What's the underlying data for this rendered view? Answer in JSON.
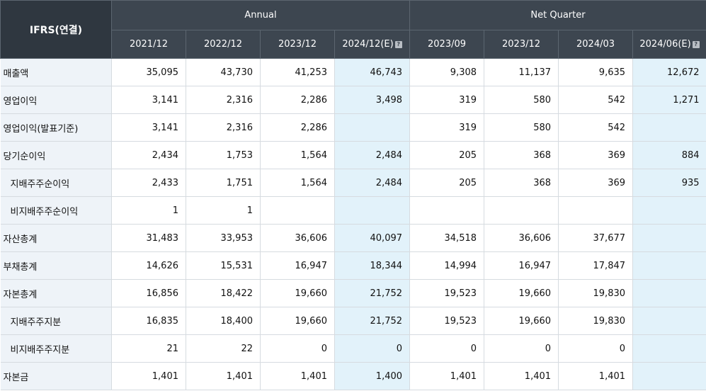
{
  "table": {
    "corner": "IFRS(연결)",
    "group_annual": "Annual",
    "group_quarter": "Net Quarter",
    "columns": [
      "2021/12",
      "2022/12",
      "2023/12",
      "2024/12(E)",
      "2023/09",
      "2023/12",
      "2024/03",
      "2024/06(E)"
    ],
    "estimate_columns": [
      3,
      7
    ],
    "rows": [
      {
        "label": "매출액",
        "sub": false,
        "cells": [
          "35,095",
          "43,730",
          "41,253",
          "46,743",
          "9,308",
          "11,137",
          "9,635",
          "12,672"
        ]
      },
      {
        "label": "영업이익",
        "sub": false,
        "cells": [
          "3,141",
          "2,316",
          "2,286",
          "3,498",
          "319",
          "580",
          "542",
          "1,271"
        ]
      },
      {
        "label": "영업이익(발표기준)",
        "sub": false,
        "cells": [
          "3,141",
          "2,316",
          "2,286",
          "",
          "319",
          "580",
          "542",
          ""
        ]
      },
      {
        "label": "당기순이익",
        "sub": false,
        "cells": [
          "2,434",
          "1,753",
          "1,564",
          "2,484",
          "205",
          "368",
          "369",
          "884"
        ]
      },
      {
        "label": "지배주주순이익",
        "sub": true,
        "cells": [
          "2,433",
          "1,751",
          "1,564",
          "2,484",
          "205",
          "368",
          "369",
          "935"
        ]
      },
      {
        "label": "비지배주주순이익",
        "sub": true,
        "cells": [
          "1",
          "1",
          "",
          "",
          "",
          "",
          "",
          ""
        ]
      },
      {
        "label": "자산총계",
        "sub": false,
        "cells": [
          "31,483",
          "33,953",
          "36,606",
          "40,097",
          "34,518",
          "36,606",
          "37,677",
          ""
        ]
      },
      {
        "label": "부채총계",
        "sub": false,
        "cells": [
          "14,626",
          "15,531",
          "16,947",
          "18,344",
          "14,994",
          "16,947",
          "17,847",
          ""
        ]
      },
      {
        "label": "자본총계",
        "sub": false,
        "cells": [
          "16,856",
          "18,422",
          "19,660",
          "21,752",
          "19,523",
          "19,660",
          "19,830",
          ""
        ]
      },
      {
        "label": "지배주주지분",
        "sub": true,
        "cells": [
          "16,835",
          "18,400",
          "19,660",
          "21,752",
          "19,523",
          "19,660",
          "19,830",
          ""
        ]
      },
      {
        "label": "비지배주주지분",
        "sub": true,
        "cells": [
          "21",
          "22",
          "0",
          "0",
          "0",
          "0",
          "0",
          ""
        ]
      },
      {
        "label": "자본금",
        "sub": false,
        "cells": [
          "1,401",
          "1,401",
          "1,401",
          "1,400",
          "1,401",
          "1,401",
          "1,401",
          ""
        ]
      }
    ]
  }
}
